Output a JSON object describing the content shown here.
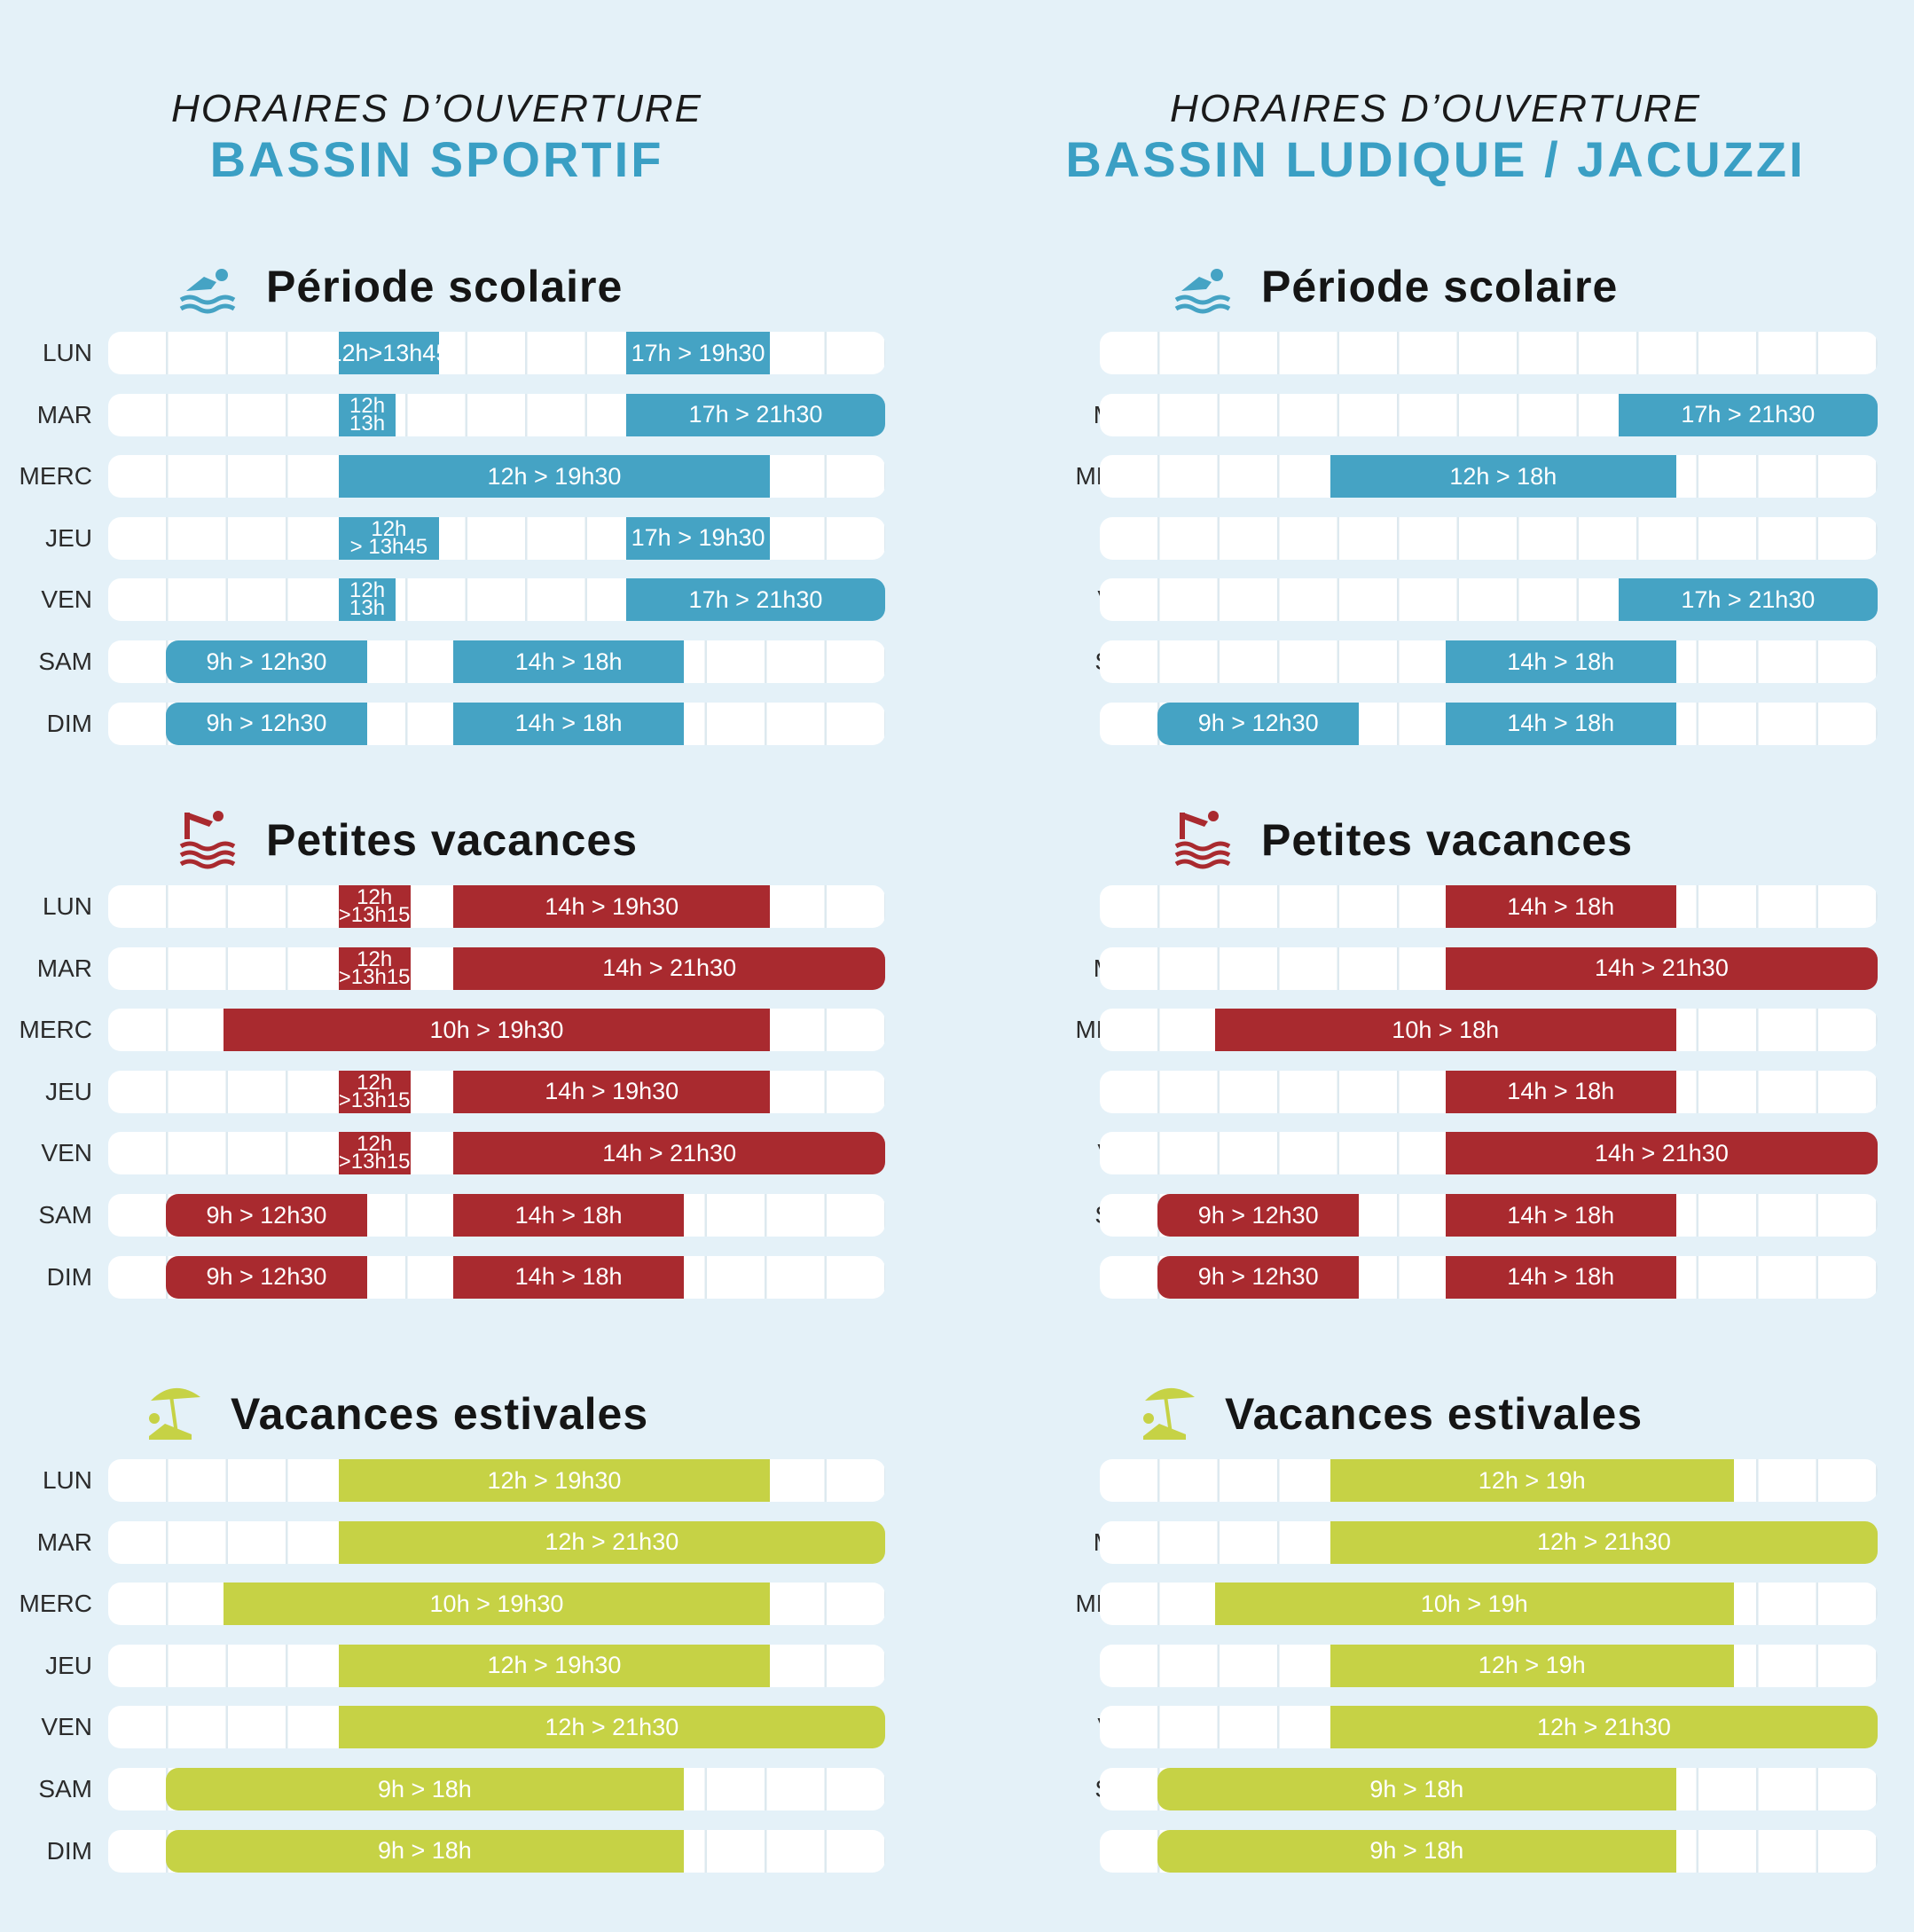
{
  "colors": {
    "background": "#e4f1f8",
    "blue": "#45a3c4",
    "red": "#a92a2f",
    "green": "#c6d245",
    "heading_accent": "#3a9fc4"
  },
  "days": [
    "LUN",
    "MAR",
    "MERC",
    "JEU",
    "VEN",
    "SAM",
    "DIM"
  ],
  "sections_meta": [
    {
      "title": "Période scolaire",
      "icon": "swimmer-icon"
    },
    {
      "title": "Petites vacances",
      "icon": "diver-icon"
    },
    {
      "title": "Vacances estivales",
      "icon": "beach-umbrella-icon"
    }
  ],
  "pools": [
    {
      "heading_top": "HORAIRES D’OUVERTURE",
      "heading_bottom": "BASSIN SPORTIF",
      "sections": [
        {
          "rows": [
            [
              {
                "label": "12h>13h45",
                "start": 12,
                "end": 13.75
              },
              {
                "label": "17h > 19h30",
                "start": 17,
                "end": 19.5
              }
            ],
            [
              {
                "label": "12h\n13h",
                "start": 12,
                "end": 13
              },
              {
                "label": "17h > 21h30",
                "start": 17,
                "end": 21.5
              }
            ],
            [
              {
                "label": "12h > 19h30",
                "start": 12,
                "end": 19.5
              }
            ],
            [
              {
                "label": "12h\n> 13h45",
                "start": 12,
                "end": 13.75
              },
              {
                "label": "17h > 19h30",
                "start": 17,
                "end": 19.5
              }
            ],
            [
              {
                "label": "12h\n13h",
                "start": 12,
                "end": 13
              },
              {
                "label": "17h > 21h30",
                "start": 17,
                "end": 21.5
              }
            ],
            [
              {
                "label": "9h > 12h30",
                "start": 9,
                "end": 12.5
              },
              {
                "label": "14h > 18h",
                "start": 14,
                "end": 18
              }
            ],
            [
              {
                "label": "9h > 12h30",
                "start": 9,
                "end": 12.5
              },
              {
                "label": "14h > 18h",
                "start": 14,
                "end": 18
              }
            ]
          ]
        },
        {
          "rows": [
            [
              {
                "label": "12h\n>13h15",
                "start": 12,
                "end": 13.25
              },
              {
                "label": "14h > 19h30",
                "start": 14,
                "end": 19.5
              }
            ],
            [
              {
                "label": "12h\n>13h15",
                "start": 12,
                "end": 13.25
              },
              {
                "label": "14h > 21h30",
                "start": 14,
                "end": 21.5
              }
            ],
            [
              {
                "label": "10h > 19h30",
                "start": 10,
                "end": 19.5
              }
            ],
            [
              {
                "label": "12h\n>13h15",
                "start": 12,
                "end": 13.25
              },
              {
                "label": "14h > 19h30",
                "start": 14,
                "end": 19.5
              }
            ],
            [
              {
                "label": "12h\n>13h15",
                "start": 12,
                "end": 13.25
              },
              {
                "label": "14h > 21h30",
                "start": 14,
                "end": 21.5
              }
            ],
            [
              {
                "label": "9h > 12h30",
                "start": 9,
                "end": 12.5
              },
              {
                "label": "14h > 18h",
                "start": 14,
                "end": 18
              }
            ],
            [
              {
                "label": "9h > 12h30",
                "start": 9,
                "end": 12.5
              },
              {
                "label": "14h > 18h",
                "start": 14,
                "end": 18
              }
            ]
          ]
        },
        {
          "rows": [
            [
              {
                "label": "12h > 19h30",
                "start": 12,
                "end": 19.5
              }
            ],
            [
              {
                "label": "12h > 21h30",
                "start": 12,
                "end": 21.5
              }
            ],
            [
              {
                "label": "10h > 19h30",
                "start": 10,
                "end": 19.5
              }
            ],
            [
              {
                "label": "12h > 19h30",
                "start": 12,
                "end": 19.5
              }
            ],
            [
              {
                "label": "12h > 21h30",
                "start": 12,
                "end": 21.5
              }
            ],
            [
              {
                "label": "9h > 18h",
                "start": 9,
                "end": 18
              }
            ],
            [
              {
                "label": "9h > 18h",
                "start": 9,
                "end": 18
              }
            ]
          ]
        }
      ]
    },
    {
      "heading_top": "HORAIRES D’OUVERTURE",
      "heading_bottom": "BASSIN LUDIQUE / JACUZZI",
      "sections": [
        {
          "rows": [
            [],
            [
              {
                "label": "17h > 21h30",
                "start": 17,
                "end": 21.5
              }
            ],
            [
              {
                "label": "12h > 18h",
                "start": 12,
                "end": 18
              }
            ],
            [],
            [
              {
                "label": "17h > 21h30",
                "start": 17,
                "end": 21.5
              }
            ],
            [
              {
                "label": "14h > 18h",
                "start": 14,
                "end": 18
              }
            ],
            [
              {
                "label": "9h > 12h30",
                "start": 9,
                "end": 12.5
              },
              {
                "label": "14h > 18h",
                "start": 14,
                "end": 18
              }
            ]
          ]
        },
        {
          "rows": [
            [
              {
                "label": "14h > 18h",
                "start": 14,
                "end": 18
              }
            ],
            [
              {
                "label": "14h > 21h30",
                "start": 14,
                "end": 21.5
              }
            ],
            [
              {
                "label": "10h > 18h",
                "start": 10,
                "end": 18
              }
            ],
            [
              {
                "label": "14h > 18h",
                "start": 14,
                "end": 18
              }
            ],
            [
              {
                "label": "14h > 21h30",
                "start": 14,
                "end": 21.5
              }
            ],
            [
              {
                "label": "9h > 12h30",
                "start": 9,
                "end": 12.5
              },
              {
                "label": "14h > 18h",
                "start": 14,
                "end": 18
              }
            ],
            [
              {
                "label": "9h > 12h30",
                "start": 9,
                "end": 12.5
              },
              {
                "label": "14h > 18h",
                "start": 14,
                "end": 18
              }
            ]
          ]
        },
        {
          "rows": [
            [
              {
                "label": "12h > 19h",
                "start": 12,
                "end": 19
              }
            ],
            [
              {
                "label": "12h > 21h30",
                "start": 12,
                "end": 21.5
              }
            ],
            [
              {
                "label": "10h > 19h",
                "start": 10,
                "end": 19
              }
            ],
            [
              {
                "label": "12h > 19h",
                "start": 12,
                "end": 19
              }
            ],
            [
              {
                "label": "12h > 21h30",
                "start": 12,
                "end": 21.5
              }
            ],
            [
              {
                "label": "9h > 18h",
                "start": 9,
                "end": 18
              }
            ],
            [
              {
                "label": "9h > 18h",
                "start": 9,
                "end": 18
              }
            ]
          ]
        }
      ]
    }
  ]
}
